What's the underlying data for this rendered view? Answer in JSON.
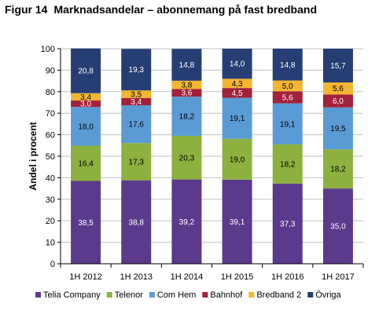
{
  "chart_data": {
    "type": "bar",
    "stacked": true,
    "figure_label": "Figur 14",
    "title": "Marknadsandelar – abonnemang på fast bredband",
    "xlabel": "",
    "ylabel": "Andel i procent",
    "ylim": [
      0,
      100
    ],
    "yticks": [
      0,
      10,
      20,
      30,
      40,
      50,
      60,
      70,
      80,
      90,
      100
    ],
    "grid": true,
    "legend_position": "bottom",
    "categories": [
      "1H 2012",
      "1H 2013",
      "1H 2014",
      "1H 2015",
      "1H 2016",
      "1H 2017"
    ],
    "series": [
      {
        "name": "Telia Company",
        "color": "#5b3a8c",
        "label_color": "#ffffff",
        "values": [
          38.5,
          38.8,
          39.2,
          39.1,
          37.3,
          35.0
        ],
        "labels": [
          "38,5",
          "38,8",
          "39,2",
          "39,1",
          "37,3",
          "35,0"
        ]
      },
      {
        "name": "Telenor",
        "color": "#8db13f",
        "label_color": "#000000",
        "values": [
          16.4,
          17.3,
          20.3,
          19.0,
          18.2,
          18.2
        ],
        "labels": [
          "16,4",
          "17,3",
          "20,3",
          "19,0",
          "18,2",
          "18,2"
        ]
      },
      {
        "name": "Com Hem",
        "color": "#5b9bd5",
        "label_color": "#000000",
        "values": [
          18.0,
          17.6,
          18.2,
          19.1,
          19.1,
          19.5
        ],
        "labels": [
          "18,0",
          "17,6",
          "18,2",
          "19,1",
          "19,1",
          "19,5"
        ]
      },
      {
        "name": "Bahnhof",
        "color": "#a3213a",
        "label_color": "#ffffff",
        "values": [
          3.0,
          3.4,
          3.6,
          4.5,
          5.6,
          6.0
        ],
        "labels": [
          "3,0",
          "3,4",
          "3,6",
          "4,5",
          "5,6",
          "6,0"
        ]
      },
      {
        "name": "Bredband 2",
        "color": "#f2b631",
        "label_color": "#000000",
        "values": [
          3.4,
          3.5,
          3.8,
          4.3,
          5.0,
          5.6
        ],
        "labels": [
          "3,4",
          "3,5",
          "3,8",
          "4,3",
          "5,0",
          "5,6"
        ]
      },
      {
        "name": "Övriga",
        "color": "#263e73",
        "label_color": "#ffffff",
        "values": [
          20.8,
          19.3,
          14.8,
          14.0,
          14.8,
          15.7
        ],
        "labels": [
          "20,8",
          "19,3",
          "14,8",
          "14,0",
          "14,8",
          "15,7"
        ]
      }
    ]
  }
}
